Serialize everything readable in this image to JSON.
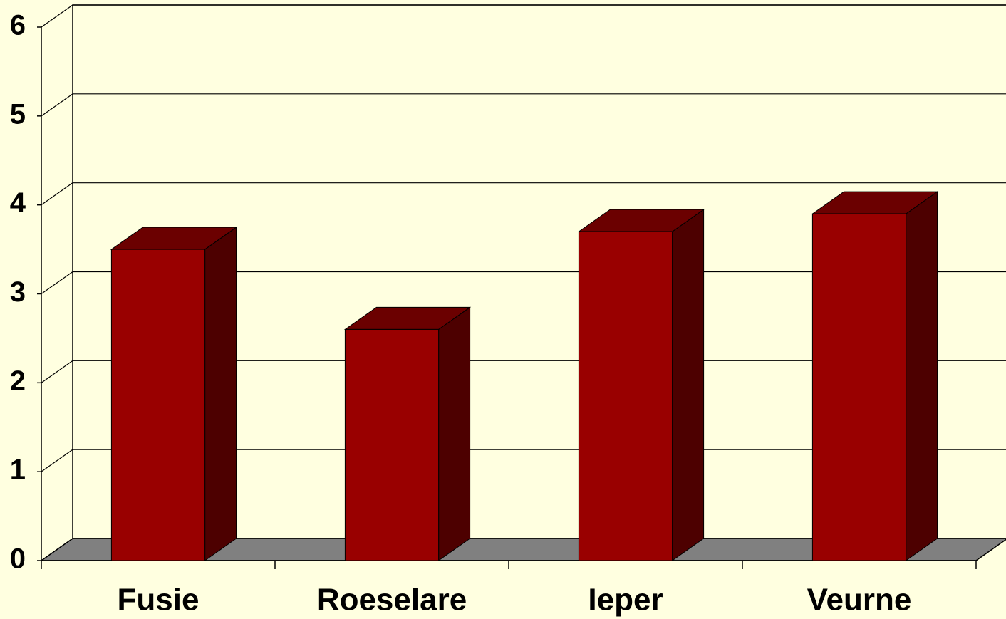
{
  "chart_data": {
    "type": "bar3d",
    "categories": [
      "Fusie",
      "Roeselare",
      "Ieper",
      "Veurne"
    ],
    "values": [
      3.5,
      2.6,
      3.7,
      3.9
    ],
    "color": "#990000",
    "ylim": [
      0,
      6
    ],
    "yticks": [
      0,
      1,
      2,
      3,
      4,
      5,
      6
    ],
    "grid": true
  }
}
